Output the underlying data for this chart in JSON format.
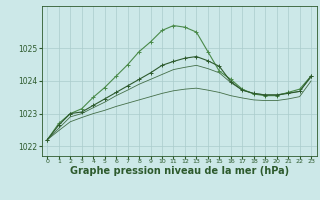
{
  "background_color": "#cce8e8",
  "grid_color": "#aacccc",
  "line_color_main": "#2d5a2d",
  "line_color_light": "#4a8a4a",
  "xlabel": "Graphe pression niveau de la mer (hPa)",
  "xlabel_fontsize": 7,
  "ylim": [
    1021.7,
    1026.3
  ],
  "xlim": [
    -0.5,
    23.5
  ],
  "yticks": [
    1022,
    1023,
    1024,
    1025
  ],
  "xticks": [
    0,
    1,
    2,
    3,
    4,
    5,
    6,
    7,
    8,
    9,
    10,
    11,
    12,
    13,
    14,
    15,
    16,
    17,
    18,
    19,
    20,
    21,
    22,
    23
  ],
  "s1_x": [
    0,
    1,
    2,
    3,
    4,
    5,
    6,
    7,
    8,
    9,
    10,
    11,
    12,
    13,
    14,
    15,
    16,
    17,
    18,
    19,
    20,
    21,
    22,
    23
  ],
  "s1_y": [
    1022.2,
    1022.7,
    1023.0,
    1023.15,
    1023.5,
    1023.8,
    1024.15,
    1024.5,
    1024.9,
    1025.2,
    1025.55,
    1025.7,
    1025.65,
    1025.5,
    1024.9,
    1024.3,
    1024.05,
    1023.75,
    1023.6,
    1023.55,
    1023.55,
    1023.65,
    1023.75,
    1024.15
  ],
  "s2_x": [
    0,
    1,
    2,
    3,
    4,
    5,
    6,
    7,
    8,
    9,
    10,
    11,
    12,
    13,
    14,
    15,
    16,
    17,
    18,
    19,
    20,
    21,
    22,
    23
  ],
  "s2_y": [
    1022.2,
    1022.55,
    1022.9,
    1023.0,
    1023.18,
    1023.35,
    1023.55,
    1023.72,
    1023.9,
    1024.05,
    1024.2,
    1024.35,
    1024.42,
    1024.48,
    1024.38,
    1024.25,
    1023.95,
    1023.72,
    1023.62,
    1023.58,
    1023.58,
    1023.63,
    1023.68,
    1024.12
  ],
  "s3_x": [
    0,
    1,
    2,
    3,
    4,
    5,
    6,
    7,
    8,
    9,
    10,
    11,
    12,
    13,
    14,
    15,
    16,
    17,
    18,
    19,
    20,
    21,
    22,
    23
  ],
  "s3_y": [
    1022.2,
    1022.48,
    1022.75,
    1022.88,
    1023.0,
    1023.1,
    1023.22,
    1023.32,
    1023.42,
    1023.52,
    1023.62,
    1023.7,
    1023.75,
    1023.78,
    1023.72,
    1023.65,
    1023.55,
    1023.48,
    1023.42,
    1023.4,
    1023.4,
    1023.45,
    1023.52,
    1024.0
  ],
  "s4_x": [
    0,
    1,
    2,
    3,
    4,
    5,
    6,
    7,
    8,
    9,
    10,
    11,
    12,
    13,
    14,
    15,
    16,
    17,
    18,
    19,
    20,
    21,
    22,
    23
  ],
  "s4_y": [
    1022.2,
    1022.65,
    1023.0,
    1023.05,
    1023.25,
    1023.45,
    1023.65,
    1023.85,
    1024.05,
    1024.25,
    1024.48,
    1024.6,
    1024.7,
    1024.75,
    1024.62,
    1024.45,
    1023.98,
    1023.72,
    1023.62,
    1023.57,
    1023.57,
    1023.62,
    1023.68,
    1024.15
  ]
}
